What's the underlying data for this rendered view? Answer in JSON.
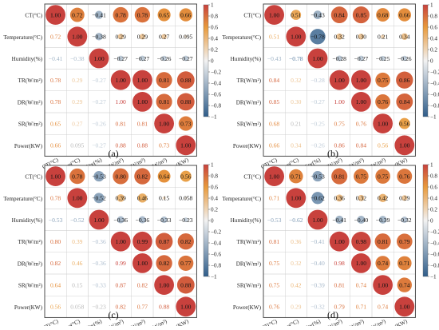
{
  "figure": {
    "panel_labels": [
      "(a)",
      "(b)",
      "(c)",
      "(d)"
    ],
    "variables": [
      "CT(°C)",
      "Temperature(°C)",
      "Humidity(%)",
      "TR(W/m²)",
      "DR(W/m²)",
      "SR(W/m²)",
      "Power(KW)"
    ],
    "colorbar": {
      "ticks": [
        "1",
        "0.8",
        "0.6",
        "0.4",
        "0.2",
        "0",
        "−0.2",
        "−0.4",
        "−0.6",
        "−0.8",
        "−1"
      ],
      "low_color": "#2f5d8a",
      "mid_color": "#f2f2f2",
      "high_color": "#c8413d"
    }
  },
  "chart_data": [
    {
      "type": "heatmap",
      "panel": "(a)",
      "variables": [
        "CT(°C)",
        "Temperature(°C)",
        "Humidity(%)",
        "TR(W/m²)",
        "DR(W/m²)",
        "SR(W/m²)",
        "Power(KW)"
      ],
      "matrix": [
        [
          1.0,
          0.72,
          -0.41,
          0.78,
          0.78,
          0.65,
          0.66
        ],
        [
          0.72,
          1.0,
          -0.38,
          0.29,
          0.29,
          0.27,
          0.095
        ],
        [
          -0.41,
          -0.38,
          1.0,
          -0.27,
          -0.27,
          -0.26,
          -0.27
        ],
        [
          0.78,
          0.29,
          -0.27,
          1.0,
          1.0,
          0.81,
          0.88
        ],
        [
          0.78,
          0.29,
          -0.27,
          1.0,
          1.0,
          0.81,
          0.88
        ],
        [
          0.65,
          0.27,
          -0.26,
          0.81,
          0.81,
          1.0,
          0.73
        ],
        [
          0.66,
          0.095,
          -0.27,
          0.88,
          0.88,
          0.73,
          1.0
        ]
      ],
      "value_labels": [
        [
          "1.00",
          "0.72",
          "−0.41",
          "0.78",
          "0.78",
          "0.65",
          "0.66"
        ],
        [
          "0.72",
          "1.00",
          "−0.38",
          "0.29",
          "0.29",
          "0.27",
          "0.095"
        ],
        [
          "−0.41",
          "−0.38",
          "1.00",
          "−0.27",
          "−0.27",
          "−0.26",
          "−0.27"
        ],
        [
          "0.78",
          "0.29",
          "−0.27",
          "1.00",
          "1.00",
          "0.81",
          "0.88"
        ],
        [
          "0.78",
          "0.29",
          "−0.27",
          "1.00",
          "1.00",
          "0.81",
          "0.88"
        ],
        [
          "0.65",
          "0.27",
          "−0.26",
          "0.81",
          "0.81",
          "1.00",
          "0.73"
        ],
        [
          "0.66",
          "0.095",
          "−0.27",
          "0.88",
          "0.88",
          "0.73",
          "1.00"
        ]
      ],
      "clim": [
        -1,
        1
      ]
    },
    {
      "type": "heatmap",
      "panel": "(b)",
      "variables": [
        "CT(°C)",
        "Temperature(°C)",
        "Humidity(%)",
        "TR(W/m²)",
        "DR(W/m²)",
        "SR(W/m²)",
        "Power(KW)"
      ],
      "matrix": [
        [
          1.0,
          0.51,
          -0.43,
          0.84,
          0.85,
          0.68,
          0.66
        ],
        [
          0.51,
          1.0,
          -0.78,
          0.32,
          0.3,
          0.21,
          0.34
        ],
        [
          -0.43,
          -0.78,
          1.0,
          -0.28,
          -0.27,
          -0.25,
          -0.26
        ],
        [
          0.84,
          0.32,
          -0.28,
          1.0,
          1.0,
          0.75,
          0.86
        ],
        [
          0.85,
          0.3,
          -0.27,
          1.0,
          1.0,
          0.76,
          0.84
        ],
        [
          0.68,
          0.21,
          -0.25,
          0.75,
          0.76,
          1.0,
          0.56
        ],
        [
          0.66,
          0.34,
          -0.26,
          0.86,
          0.84,
          0.56,
          1.0
        ]
      ],
      "value_labels": [
        [
          "1.00",
          "0.51",
          "−0.43",
          "0.84",
          "0.85",
          "0.68",
          "0.66"
        ],
        [
          "0.51",
          "1.00",
          "−0.78",
          "0.32",
          "0.30",
          "0.21",
          "0.34"
        ],
        [
          "−0.43",
          "−0.78",
          "1.00",
          "−0.28",
          "−0.27",
          "−0.25",
          "−0.26"
        ],
        [
          "0.84",
          "0.32",
          "−0.28",
          "1.00",
          "1.00",
          "0.75",
          "0.86"
        ],
        [
          "0.85",
          "0.30",
          "−0.27",
          "1.00",
          "1.00",
          "0.76",
          "0.84"
        ],
        [
          "0.68",
          "0.21",
          "−0.25",
          "0.75",
          "0.76",
          "1.00",
          "0.56"
        ],
        [
          "0.66",
          "0.34",
          "−0.26",
          "0.86",
          "0.84",
          "0.56",
          "1.00"
        ]
      ],
      "clim": [
        -1,
        1
      ]
    },
    {
      "type": "heatmap",
      "panel": "(c)",
      "variables": [
        "CT(°C)",
        "Temperature(°C)",
        "Humidity(%)",
        "TR(W/m²)",
        "DR(W/m²)",
        "SR(W/m²)",
        "Power(KW)"
      ],
      "matrix": [
        [
          1.0,
          0.78,
          -0.53,
          0.8,
          0.82,
          0.64,
          0.56
        ],
        [
          0.78,
          1.0,
          -0.52,
          0.39,
          0.46,
          0.15,
          0.058
        ],
        [
          -0.53,
          -0.52,
          1.0,
          -0.36,
          -0.36,
          -0.33,
          -0.23
        ],
        [
          0.8,
          0.39,
          -0.36,
          1.0,
          0.99,
          0.87,
          0.82
        ],
        [
          0.82,
          0.46,
          -0.36,
          0.99,
          1.0,
          0.82,
          0.77
        ],
        [
          0.64,
          0.15,
          -0.33,
          0.87,
          0.82,
          1.0,
          0.88
        ],
        [
          0.56,
          0.058,
          -0.23,
          0.82,
          0.77,
          0.88,
          1.0
        ]
      ],
      "value_labels": [
        [
          "1.00",
          "0.78",
          "−0.53",
          "0.80",
          "0.82",
          "0.64",
          "0.56"
        ],
        [
          "0.78",
          "1.00",
          "−0.52",
          "0.39",
          "0.46",
          "0.15",
          "0.058"
        ],
        [
          "−0.53",
          "−0.52",
          "1.00",
          "−0.36",
          "−0.36",
          "−0.33",
          "−0.23"
        ],
        [
          "0.80",
          "0.39",
          "−0.36",
          "1.00",
          "0.99",
          "0.87",
          "0.82"
        ],
        [
          "0.82",
          "0.46",
          "−0.36",
          "0.99",
          "1.00",
          "0.82",
          "0.77"
        ],
        [
          "0.64",
          "0.15",
          "−0.33",
          "0.87",
          "0.82",
          "1.00",
          "0.88"
        ],
        [
          "0.56",
          "0.058",
          "−0.23",
          "0.82",
          "0.77",
          "0.88",
          "1.00"
        ]
      ],
      "clim": [
        -1,
        1
      ]
    },
    {
      "type": "heatmap",
      "panel": "(d)",
      "variables": [
        "CT(°C)",
        "Temperature(°C)",
        "Humidity(%)",
        "TR(W/m²)",
        "DR(W/m²)",
        "SR(W/m²)",
        "Power(KW)"
      ],
      "matrix": [
        [
          1.0,
          0.71,
          -0.53,
          0.81,
          0.75,
          0.75,
          0.76
        ],
        [
          0.71,
          1.0,
          -0.62,
          0.36,
          0.32,
          0.42,
          0.29
        ],
        [
          -0.53,
          -0.62,
          1.0,
          -0.41,
          -0.4,
          -0.39,
          -0.32
        ],
        [
          0.81,
          0.36,
          -0.41,
          1.0,
          0.98,
          0.81,
          0.79
        ],
        [
          0.75,
          0.32,
          -0.4,
          0.98,
          1.0,
          0.74,
          0.71
        ],
        [
          0.75,
          0.42,
          -0.39,
          0.81,
          0.74,
          1.0,
          0.74
        ],
        [
          0.76,
          0.29,
          -0.32,
          0.79,
          0.71,
          0.74,
          1.0
        ]
      ],
      "value_labels": [
        [
          "1.00",
          "0.71",
          "−0.53",
          "0.81",
          "0.75",
          "0.75",
          "0.76"
        ],
        [
          "0.71",
          "1.00",
          "−0.62",
          "0.36",
          "0.32",
          "0.42",
          "0.29"
        ],
        [
          "−0.53",
          "−0.62",
          "1.00",
          "−0.41",
          "−0.40",
          "−0.39",
          "−0.32"
        ],
        [
          "0.81",
          "0.36",
          "−0.41",
          "1.00",
          "0.98",
          "0.81",
          "0.79"
        ],
        [
          "0.75",
          "0.32",
          "−0.40",
          "0.98",
          "1.00",
          "0.74",
          "0.71"
        ],
        [
          "0.75",
          "0.42",
          "−0.39",
          "0.81",
          "0.74",
          "1.00",
          "0.74"
        ],
        [
          "0.76",
          "0.29",
          "−0.32",
          "0.79",
          "0.71",
          "0.74",
          "1.00"
        ]
      ],
      "clim": [
        -1,
        1
      ]
    }
  ]
}
